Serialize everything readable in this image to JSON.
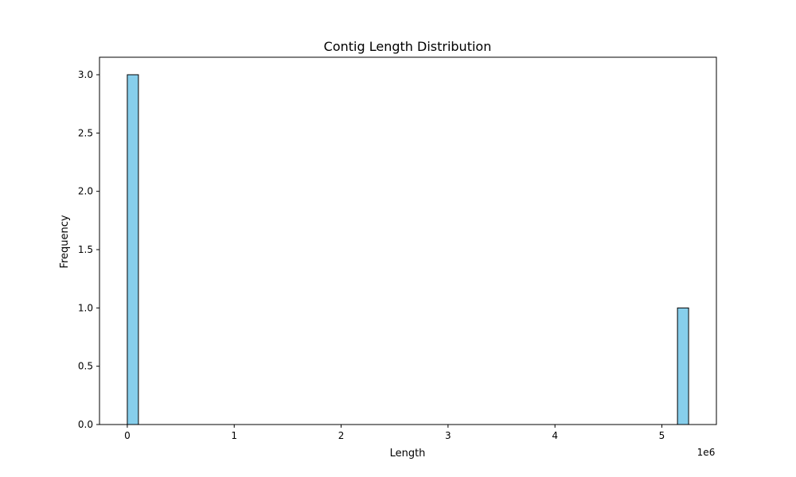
{
  "chart_data": {
    "type": "bar",
    "title": "Contig Length Distribution",
    "xlabel": "Length",
    "ylabel": "Frequency",
    "x_scale_label": "1e6",
    "x_unit_multiplier": 1000000,
    "xlim": [
      -260000,
      5510000
    ],
    "ylim": [
      0,
      3.15
    ],
    "x_ticks": [
      0,
      1,
      2,
      3,
      4,
      5
    ],
    "y_ticks": [
      0.0,
      0.5,
      1.0,
      1.5,
      2.0,
      2.5,
      3.0
    ],
    "bins": [
      {
        "x_start": 0,
        "x_end": 104000,
        "count": 3
      },
      {
        "x_start": 5146000,
        "x_end": 5250000,
        "count": 1
      }
    ],
    "bar_color": "#87ceeb",
    "edge_color": "#000000",
    "grid": false
  }
}
